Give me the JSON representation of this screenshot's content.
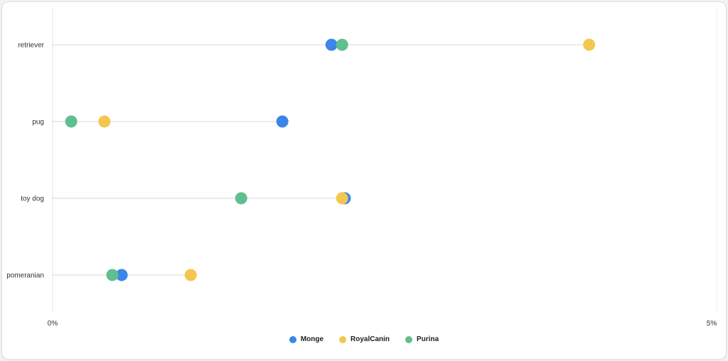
{
  "chart_data": {
    "type": "scatter",
    "subtype": "dot-plot",
    "categories": [
      "retriever",
      "pug",
      "toy dog",
      "pomeranian"
    ],
    "x_ticks": [
      "0%",
      "5%"
    ],
    "xlim": [
      0,
      5
    ],
    "series": [
      {
        "name": "Monge",
        "color": "#3b86e8",
        "values": [
          2.1,
          1.73,
          2.2,
          0.52
        ]
      },
      {
        "name": "RoyalCanin",
        "color": "#f3c74f",
        "values": [
          4.04,
          0.39,
          2.18,
          1.04
        ]
      },
      {
        "name": "Purina",
        "color": "#5fbf8f",
        "values": [
          2.18,
          0.14,
          1.42,
          0.45
        ]
      }
    ],
    "legend_position": "bottom"
  }
}
